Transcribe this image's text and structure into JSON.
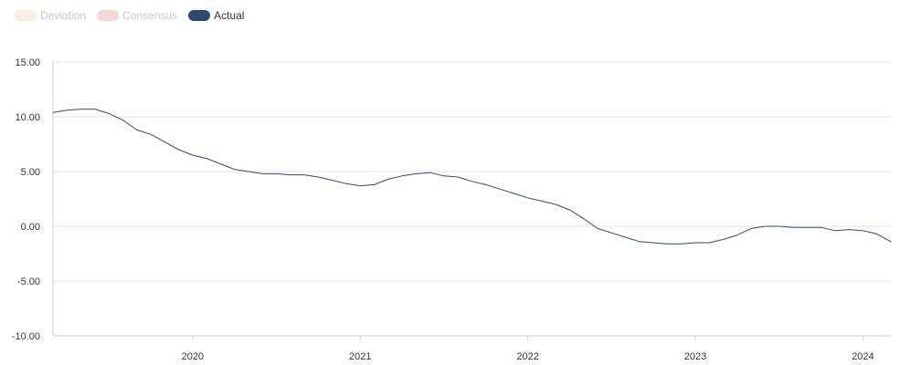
{
  "legend": {
    "items": [
      {
        "label": "Deviation",
        "color": "#fbeee8",
        "text_color": "#c8c8c8",
        "active": false
      },
      {
        "label": "Consensus",
        "color": "#f4d8d6",
        "text_color": "#c8c8c8",
        "active": false
      },
      {
        "label": "Actual",
        "color": "#2f4a72",
        "text_color": "#333333",
        "active": true
      }
    ]
  },
  "chart_data": {
    "type": "line",
    "title": "",
    "xlabel": "",
    "ylabel": "",
    "x_ticks": [
      "2020",
      "2021",
      "2022",
      "2023",
      "2024"
    ],
    "y_ticks": [
      "15.00",
      "10.00",
      "5.00",
      "0.00",
      "-5.00",
      "-10.00"
    ],
    "ylim": [
      -10,
      15
    ],
    "xlim": [
      "2019-03",
      "2024-03"
    ],
    "grid": true,
    "legend_position": "top-left",
    "series": [
      {
        "name": "Actual",
        "color": "#2f4a72",
        "x": [
          "2019-03",
          "2019-04",
          "2019-05",
          "2019-06",
          "2019-07",
          "2019-08",
          "2019-09",
          "2019-10",
          "2019-11",
          "2019-12",
          "2020-01",
          "2020-02",
          "2020-03",
          "2020-04",
          "2020-05",
          "2020-06",
          "2020-07",
          "2020-08",
          "2020-09",
          "2020-10",
          "2020-11",
          "2020-12",
          "2021-01",
          "2021-02",
          "2021-03",
          "2021-04",
          "2021-05",
          "2021-06",
          "2021-07",
          "2021-08",
          "2021-09",
          "2021-10",
          "2021-11",
          "2021-12",
          "2022-01",
          "2022-02",
          "2022-03",
          "2022-04",
          "2022-05",
          "2022-06",
          "2022-07",
          "2022-08",
          "2022-09",
          "2022-10",
          "2022-11",
          "2022-12",
          "2023-01",
          "2023-02",
          "2023-03",
          "2023-04",
          "2023-05",
          "2023-06",
          "2023-07",
          "2023-08",
          "2023-09",
          "2023-10",
          "2023-11",
          "2023-12",
          "2024-01",
          "2024-02",
          "2024-03"
        ],
        "y": [
          10.4,
          10.6,
          10.7,
          10.7,
          10.3,
          9.7,
          8.8,
          8.4,
          7.7,
          7.0,
          6.5,
          6.2,
          5.7,
          5.2,
          5.0,
          4.8,
          4.8,
          4.7,
          4.7,
          4.5,
          4.2,
          3.9,
          3.7,
          3.8,
          4.3,
          4.6,
          4.8,
          4.9,
          4.6,
          4.5,
          4.1,
          3.8,
          3.4,
          3.0,
          2.6,
          2.3,
          2.0,
          1.5,
          0.7,
          -0.2,
          -0.6,
          -1.0,
          -1.4,
          -1.5,
          -1.6,
          -1.6,
          -1.5,
          -1.5,
          -1.2,
          -0.8,
          -0.2,
          0.0,
          0.0,
          -0.1,
          -0.1,
          -0.1,
          -0.4,
          -0.3,
          -0.4,
          -0.7,
          -1.4
        ]
      }
    ]
  }
}
